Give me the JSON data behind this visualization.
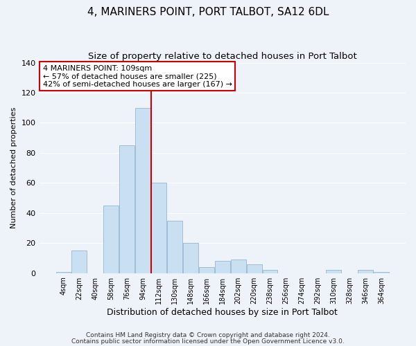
{
  "title": "4, MARINERS POINT, PORT TALBOT, SA12 6DL",
  "subtitle": "Size of property relative to detached houses in Port Talbot",
  "xlabel": "Distribution of detached houses by size in Port Talbot",
  "ylabel": "Number of detached properties",
  "bar_labels": [
    "4sqm",
    "22sqm",
    "40sqm",
    "58sqm",
    "76sqm",
    "94sqm",
    "112sqm",
    "130sqm",
    "148sqm",
    "166sqm",
    "184sqm",
    "202sqm",
    "220sqm",
    "238sqm",
    "256sqm",
    "274sqm",
    "292sqm",
    "310sqm",
    "328sqm",
    "346sqm",
    "364sqm"
  ],
  "bar_values": [
    1,
    15,
    0,
    45,
    85,
    110,
    60,
    35,
    20,
    4,
    8,
    9,
    6,
    2,
    0,
    0,
    0,
    2,
    0,
    2,
    1
  ],
  "bar_color": "#c9dff2",
  "bar_edgecolor": "#a0bcd8",
  "vline_x_index": 5.5,
  "vline_color": "#cc0000",
  "ylim": [
    0,
    140
  ],
  "yticks": [
    0,
    20,
    40,
    60,
    80,
    100,
    120,
    140
  ],
  "annotation_text": "4 MARINERS POINT: 109sqm\n← 57% of detached houses are smaller (225)\n42% of semi-detached houses are larger (167) →",
  "annotation_box_edgecolor": "#cc0000",
  "annotation_box_facecolor": "#ffffff",
  "footer1": "Contains HM Land Registry data © Crown copyright and database right 2024.",
  "footer2": "Contains public sector information licensed under the Open Government Licence v3.0.",
  "title_fontsize": 11,
  "subtitle_fontsize": 9.5,
  "xlabel_fontsize": 9,
  "ylabel_fontsize": 8,
  "tick_fontsize": 7,
  "ytick_fontsize": 8,
  "footer_fontsize": 6.5,
  "annotation_fontsize": 8,
  "background_color": "#eef2f9",
  "grid_color": "#ffffff"
}
